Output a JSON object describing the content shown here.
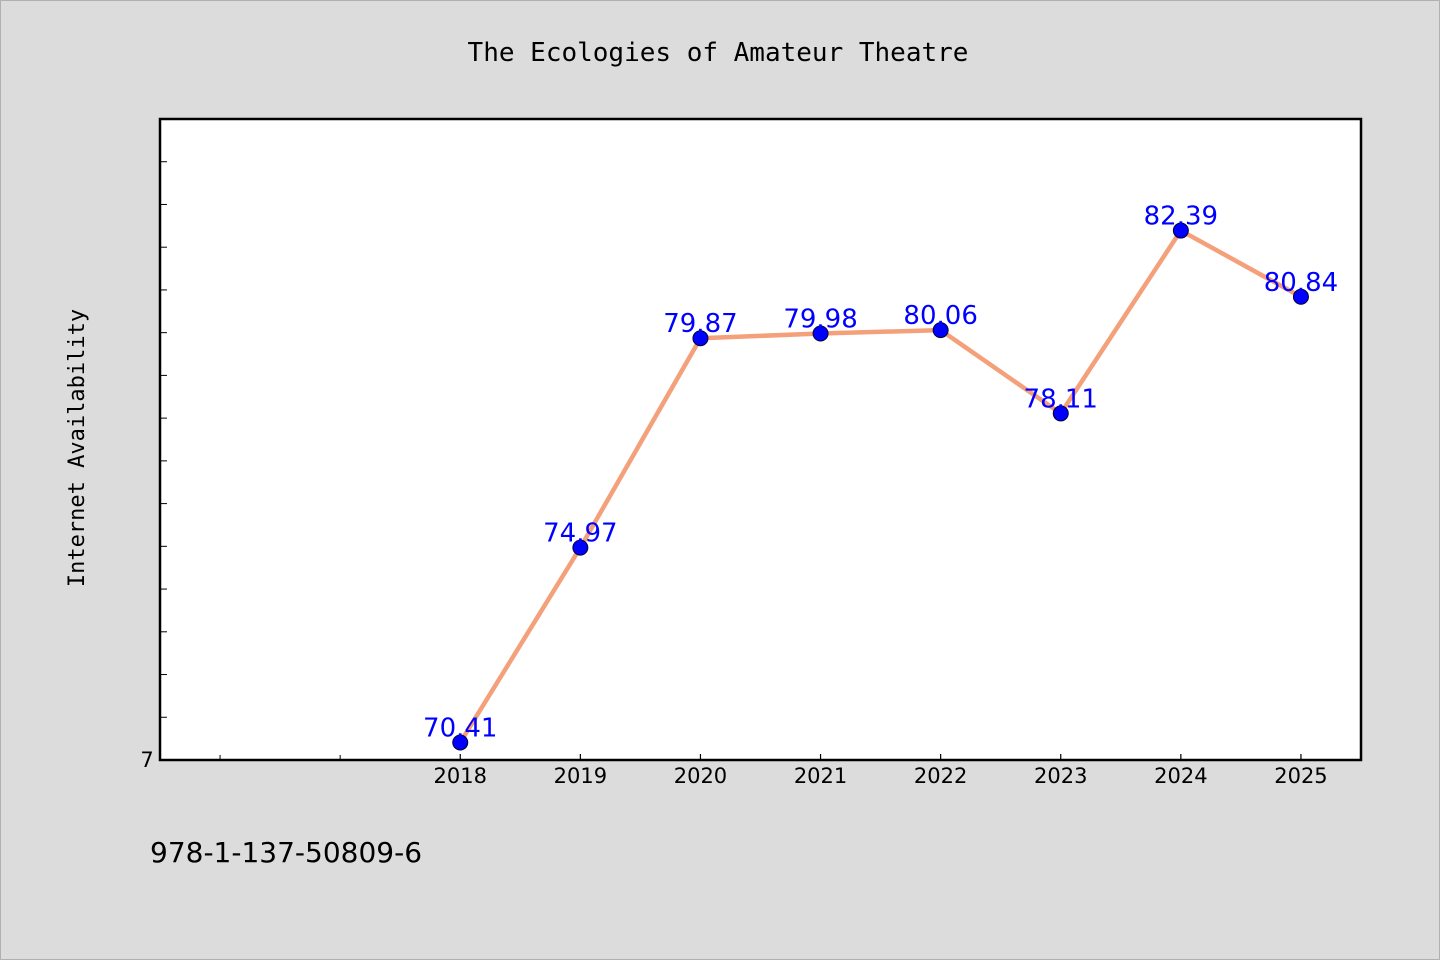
{
  "chart_data": {
    "type": "line",
    "title": "The Ecologies of Amateur Theatre",
    "ylabel": "Internet Availability",
    "xlabel": "",
    "x": [
      "2018",
      "2019",
      "2020",
      "2021",
      "2022",
      "2023",
      "2024",
      "2025"
    ],
    "series": [
      {
        "values": [
          70.41,
          74.97,
          79.87,
          79.98,
          80.06,
          78.11,
          82.39,
          80.84
        ],
        "line_color": "#f4a07a",
        "marker_color": "#0000ff"
      }
    ],
    "data_labels": [
      "70.41",
      "74.97",
      "79.87",
      "79.98",
      "80.06",
      "78.11",
      "82.39",
      "80.84"
    ],
    "y_tick_label": "7",
    "ylim": [
      70,
      85
    ],
    "xlim": [
      -2.5,
      7.5
    ],
    "grid": false,
    "label_color": "#0000ff"
  },
  "footnote": "978-1-137-50809-6"
}
